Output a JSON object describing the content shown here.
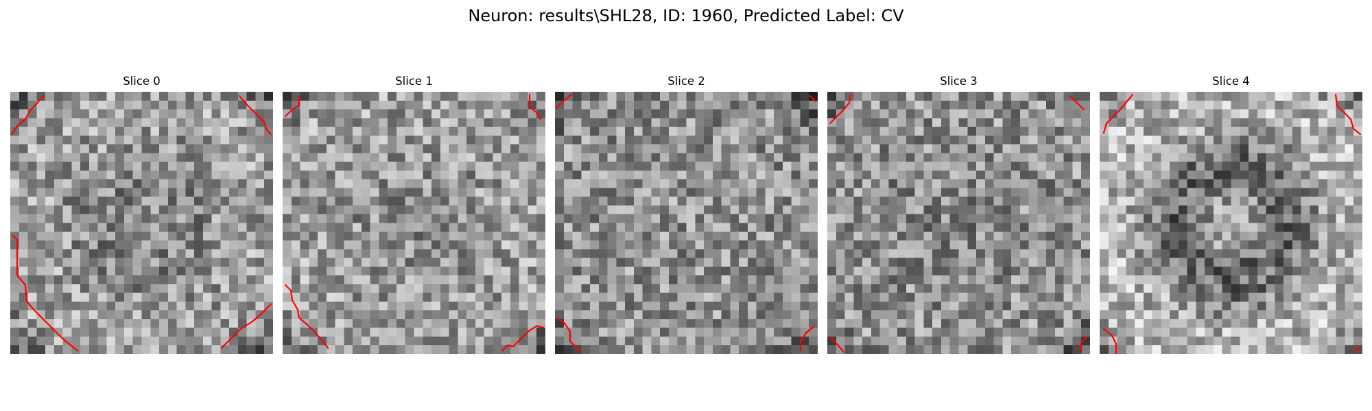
{
  "figure": {
    "title": "Neuron: results\\SHL28, ID: 1960, Predicted Label: CV"
  },
  "image_grid": {
    "rows": 30,
    "cols": 30,
    "colormap": "gray",
    "contour_color": "#ff0000"
  },
  "slices": [
    {
      "title": "Slice 0"
    },
    {
      "title": "Slice 1"
    },
    {
      "title": "Slice 2"
    },
    {
      "title": "Slice 3"
    },
    {
      "title": "Slice 4"
    }
  ]
}
